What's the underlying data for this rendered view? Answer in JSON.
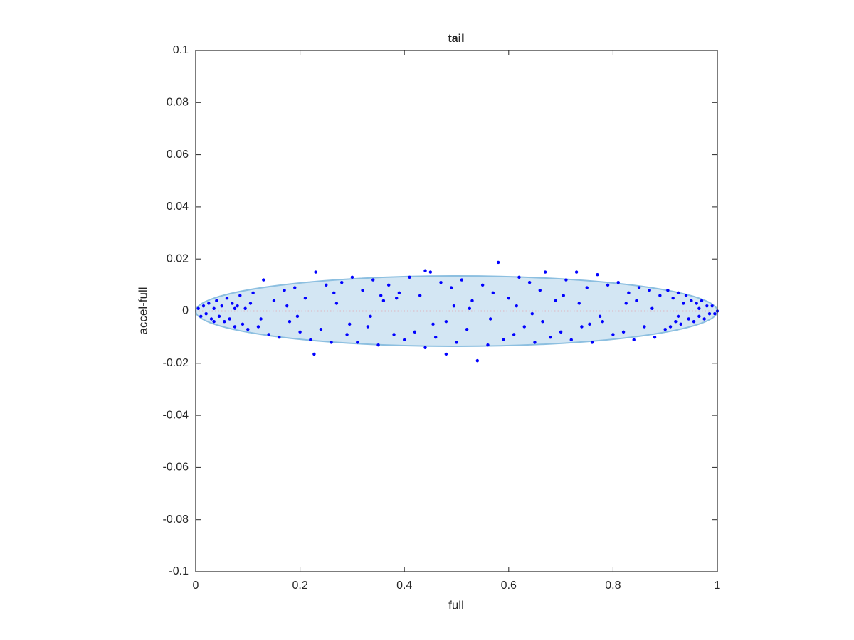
{
  "chart_data": {
    "type": "scatter",
    "title": "tail",
    "xlabel": "full",
    "ylabel": "accel-full",
    "xlim": [
      0,
      1
    ],
    "ylim": [
      -0.1,
      0.1
    ],
    "xticks": [
      0,
      0.2,
      0.4,
      0.6,
      0.8,
      1
    ],
    "yticks": [
      -0.1,
      -0.08,
      -0.06,
      -0.04,
      -0.02,
      0,
      0.02,
      0.04,
      0.06,
      0.08,
      0.1
    ],
    "ellipse": {
      "center": [
        0.5,
        0
      ],
      "radii": [
        0.5,
        0.0135
      ],
      "color": "#d3e6f3",
      "edgecolor": "#8cbfe0"
    },
    "reference_line": {
      "y": 0,
      "color": "#ff3030"
    },
    "series": [
      {
        "color": "#0000ff",
        "x": [
          0.005,
          0.01,
          0.015,
          0.02,
          0.025,
          0.03,
          0.035,
          0.04,
          0.045,
          0.05,
          0.055,
          0.06,
          0.065,
          0.07,
          0.075,
          0.08,
          0.085,
          0.09,
          0.095,
          0.1,
          0.11,
          0.12,
          0.13,
          0.14,
          0.15,
          0.16,
          0.17,
          0.18,
          0.19,
          0.2,
          0.21,
          0.22,
          0.23,
          0.24,
          0.25,
          0.26,
          0.27,
          0.28,
          0.29,
          0.3,
          0.31,
          0.32,
          0.33,
          0.34,
          0.35,
          0.36,
          0.37,
          0.38,
          0.39,
          0.4,
          0.41,
          0.42,
          0.43,
          0.44,
          0.45,
          0.46,
          0.47,
          0.48,
          0.49,
          0.5,
          0.51,
          0.52,
          0.53,
          0.54,
          0.55,
          0.56,
          0.57,
          0.58,
          0.59,
          0.6,
          0.61,
          0.62,
          0.63,
          0.64,
          0.65,
          0.66,
          0.67,
          0.68,
          0.69,
          0.7,
          0.71,
          0.72,
          0.73,
          0.74,
          0.75,
          0.76,
          0.77,
          0.78,
          0.79,
          0.8,
          0.81,
          0.82,
          0.83,
          0.84,
          0.85,
          0.86,
          0.87,
          0.88,
          0.89,
          0.9,
          0.905,
          0.91,
          0.915,
          0.92,
          0.925,
          0.93,
          0.935,
          0.94,
          0.945,
          0.95,
          0.955,
          0.96,
          0.965,
          0.97,
          0.975,
          0.98,
          0.985,
          0.99,
          0.995,
          1.0,
          0.227,
          0.48,
          0.44,
          0.125,
          0.175,
          0.265,
          0.335,
          0.385,
          0.455,
          0.525,
          0.565,
          0.615,
          0.665,
          0.735,
          0.775,
          0.845,
          0.875,
          0.035,
          0.075,
          0.105,
          0.195,
          0.295,
          0.355,
          0.495,
          0.645,
          0.705,
          0.755,
          0.825,
          0.925,
          0.965
        ],
        "values": [
          0.001,
          -0.002,
          0.002,
          -0.001,
          0.003,
          -0.003,
          0.001,
          0.004,
          -0.002,
          0.002,
          -0.004,
          0.005,
          -0.003,
          0.003,
          -0.006,
          0.002,
          0.006,
          -0.005,
          0.001,
          -0.007,
          0.007,
          -0.006,
          0.012,
          -0.009,
          0.004,
          -0.01,
          0.008,
          -0.004,
          0.009,
          -0.008,
          0.005,
          -0.011,
          0.015,
          -0.007,
          0.01,
          -0.012,
          0.003,
          0.011,
          -0.009,
          0.013,
          -0.012,
          0.008,
          -0.006,
          0.012,
          -0.013,
          0.004,
          0.01,
          -0.009,
          0.007,
          -0.011,
          0.013,
          -0.008,
          0.006,
          -0.014,
          0.015,
          -0.01,
          0.011,
          -0.004,
          0.009,
          -0.012,
          0.012,
          -0.007,
          0.004,
          -0.019,
          0.01,
          -0.013,
          0.007,
          0.0187,
          -0.011,
          0.005,
          -0.009,
          0.013,
          -0.006,
          0.011,
          -0.012,
          0.008,
          0.015,
          -0.01,
          0.004,
          -0.008,
          0.012,
          -0.011,
          0.015,
          -0.006,
          0.009,
          -0.012,
          0.014,
          -0.004,
          0.01,
          -0.009,
          0.011,
          -0.008,
          0.007,
          -0.011,
          0.009,
          -0.006,
          0.008,
          -0.01,
          0.006,
          -0.007,
          0.008,
          -0.006,
          0.005,
          -0.004,
          0.007,
          -0.005,
          0.003,
          0.006,
          -0.003,
          0.004,
          -0.004,
          0.003,
          -0.002,
          0.004,
          -0.003,
          0.002,
          -0.001,
          0.002,
          -0.001,
          0,
          -0.0165,
          -0.0165,
          0.0155,
          -0.003,
          0.002,
          0.007,
          -0.002,
          0.005,
          -0.005,
          0.001,
          -0.003,
          0.002,
          -0.004,
          0.003,
          -0.002,
          0.004,
          0.001,
          -0.004,
          0.001,
          0.003,
          -0.002,
          -0.005,
          0.006,
          0.002,
          -0.001,
          0.006,
          -0.005,
          0.003,
          -0.002,
          0.001
        ]
      }
    ]
  }
}
